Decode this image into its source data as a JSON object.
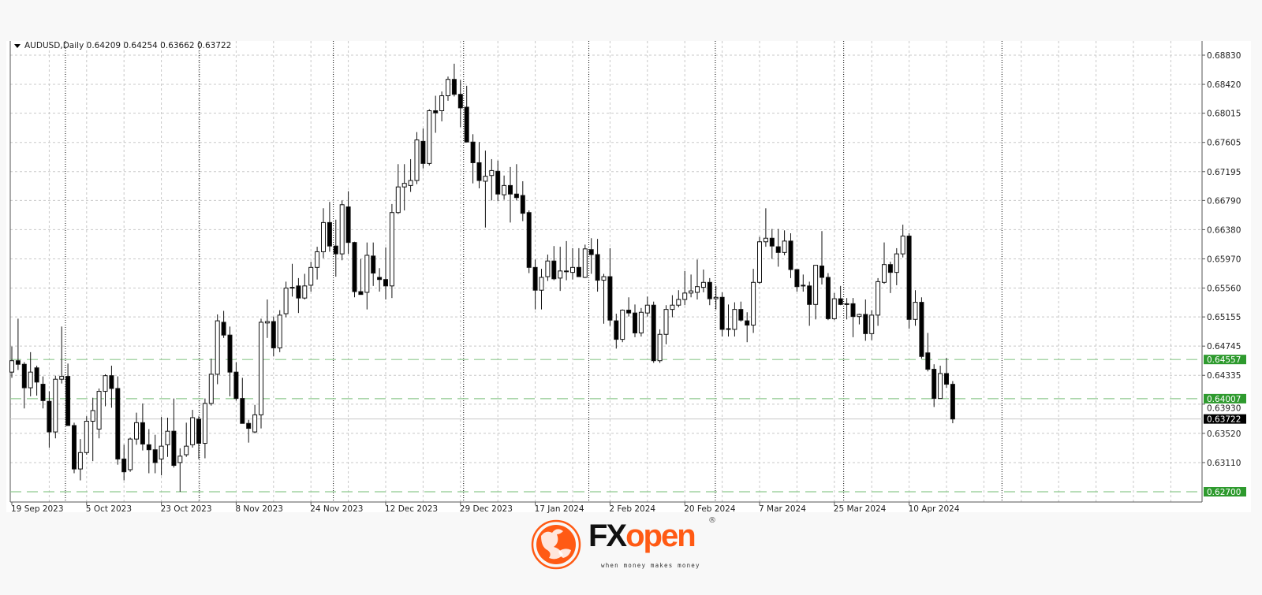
{
  "header": {
    "symbol_period": "AUDUSD,Daily",
    "open": "0.64209",
    "high": "0.64254",
    "low": "0.63662",
    "close": "0.63722",
    "menu_icon": "triangle-down-icon"
  },
  "logo": {
    "brand_fx": "FX",
    "brand_open": "open",
    "registered": "®",
    "tagline": "when money makes money",
    "icon": "bull-emblem-icon",
    "colors": {
      "orange": "#ff5a14",
      "black": "#111111"
    }
  },
  "chart_data": {
    "type": "candlestick",
    "symbol": "AUDUSD",
    "timeframe": "Daily",
    "ylim": [
      0.627,
      0.6883
    ],
    "y_ticks": [
      "0.68830",
      "0.68420",
      "0.68015",
      "0.67605",
      "0.67195",
      "0.66790",
      "0.66380",
      "0.65970",
      "0.65560",
      "0.65155",
      "0.64745",
      "0.64335",
      "0.63930",
      "0.63520",
      "0.63110"
    ],
    "x_tick_labels": [
      "19 Sep 2023",
      "5 Oct 2023",
      "23 Oct 2023",
      "8 Nov 2023",
      "24 Nov 2023",
      "12 Dec 2023",
      "29 Dec 2023",
      "17 Jan 2024",
      "2 Feb 2024",
      "20 Feb 2024",
      "7 Mar 2024",
      "25 Mar 2024",
      "10 Apr 2024"
    ],
    "grid": true,
    "colors": {
      "bull_body": "#ffffff",
      "bear_body": "#000000",
      "level_line": "#8fc98f",
      "level_label": "#2e9a2e",
      "price_line": "#c8c8c8",
      "price_label": "#000000"
    },
    "levels": [
      {
        "value": 0.64557,
        "label": "0.64557",
        "style": "dashed-green"
      },
      {
        "value": 0.64007,
        "label": "0.64007",
        "style": "dashed-green"
      },
      {
        "value": 0.627,
        "label": "0.62700",
        "style": "dashed-green"
      }
    ],
    "current_price": {
      "value": 0.63722,
      "label": "0.63722"
    },
    "ohlc_fields": [
      "open",
      "high",
      "low",
      "close"
    ],
    "ohlc": [
      [
        0.6438,
        0.6474,
        0.643,
        0.6454
      ],
      [
        0.6454,
        0.6513,
        0.6441,
        0.6449
      ],
      [
        0.6449,
        0.6452,
        0.6387,
        0.6416
      ],
      [
        0.6416,
        0.6466,
        0.6404,
        0.6438
      ],
      [
        0.6444,
        0.6447,
        0.6405,
        0.6424
      ],
      [
        0.6421,
        0.6432,
        0.6387,
        0.6398
      ],
      [
        0.6397,
        0.6411,
        0.6332,
        0.6354
      ],
      [
        0.6354,
        0.6433,
        0.6345,
        0.6428
      ],
      [
        0.6428,
        0.6502,
        0.6422,
        0.6432
      ],
      [
        0.6432,
        0.645,
        0.6363,
        0.6363
      ],
      [
        0.6363,
        0.6367,
        0.6296,
        0.6302
      ],
      [
        0.6302,
        0.6344,
        0.6286,
        0.6325
      ],
      [
        0.6325,
        0.6376,
        0.6322,
        0.6369
      ],
      [
        0.6369,
        0.6402,
        0.6313,
        0.6384
      ],
      [
        0.6358,
        0.6415,
        0.6345,
        0.6411
      ],
      [
        0.6411,
        0.6435,
        0.639,
        0.6433
      ],
      [
        0.6433,
        0.6447,
        0.6388,
        0.6415
      ],
      [
        0.6415,
        0.6432,
        0.6308,
        0.6316
      ],
      [
        0.6316,
        0.6336,
        0.6286,
        0.6298
      ],
      [
        0.6301,
        0.6346,
        0.6298,
        0.6344
      ],
      [
        0.6344,
        0.6381,
        0.6336,
        0.6367
      ],
      [
        0.6367,
        0.6394,
        0.6328,
        0.6337
      ],
      [
        0.6336,
        0.6358,
        0.6296,
        0.6329
      ],
      [
        0.6329,
        0.635,
        0.6296,
        0.6311
      ],
      [
        0.6316,
        0.6375,
        0.6293,
        0.6334
      ],
      [
        0.6336,
        0.6374,
        0.6319,
        0.6355
      ],
      [
        0.6355,
        0.6401,
        0.6304,
        0.6307
      ],
      [
        0.6311,
        0.6331,
        0.627,
        0.632
      ],
      [
        0.6322,
        0.6367,
        0.6319,
        0.6334
      ],
      [
        0.6336,
        0.6385,
        0.6332,
        0.6374
      ],
      [
        0.6372,
        0.6376,
        0.6316,
        0.6338
      ],
      [
        0.6338,
        0.6401,
        0.6317,
        0.6394
      ],
      [
        0.6394,
        0.6457,
        0.6391,
        0.6435
      ],
      [
        0.6435,
        0.6519,
        0.6421,
        0.651
      ],
      [
        0.6508,
        0.6524,
        0.6486,
        0.649
      ],
      [
        0.649,
        0.6502,
        0.6404,
        0.6438
      ],
      [
        0.6438,
        0.6452,
        0.6398,
        0.6401
      ],
      [
        0.6401,
        0.643,
        0.6366,
        0.6366
      ],
      [
        0.6366,
        0.6371,
        0.6339,
        0.6359
      ],
      [
        0.6354,
        0.6392,
        0.6352,
        0.6378
      ],
      [
        0.6378,
        0.6513,
        0.6359,
        0.6508
      ],
      [
        0.6507,
        0.654,
        0.6486,
        0.6509
      ],
      [
        0.6509,
        0.6516,
        0.646,
        0.6472
      ],
      [
        0.6472,
        0.6525,
        0.6466,
        0.6518
      ],
      [
        0.652,
        0.6565,
        0.6515,
        0.6556
      ],
      [
        0.6556,
        0.659,
        0.6544,
        0.6557
      ],
      [
        0.6559,
        0.657,
        0.6521,
        0.6542
      ],
      [
        0.6542,
        0.6576,
        0.654,
        0.6559
      ],
      [
        0.656,
        0.6593,
        0.6551,
        0.6585
      ],
      [
        0.6585,
        0.6614,
        0.6568,
        0.6607
      ],
      [
        0.6607,
        0.6668,
        0.6598,
        0.6648
      ],
      [
        0.6648,
        0.6677,
        0.6607,
        0.6615
      ],
      [
        0.6615,
        0.6652,
        0.6572,
        0.6604
      ],
      [
        0.6604,
        0.6679,
        0.6595,
        0.6673
      ],
      [
        0.667,
        0.6692,
        0.6604,
        0.662
      ],
      [
        0.662,
        0.6621,
        0.6543,
        0.6551
      ],
      [
        0.6551,
        0.6597,
        0.6547,
        0.6547
      ],
      [
        0.655,
        0.662,
        0.6526,
        0.6602
      ],
      [
        0.6601,
        0.662,
        0.6559,
        0.6577
      ],
      [
        0.6571,
        0.6584,
        0.6551,
        0.6568
      ],
      [
        0.6568,
        0.6613,
        0.654,
        0.6559
      ],
      [
        0.6559,
        0.6674,
        0.6542,
        0.6662
      ],
      [
        0.6662,
        0.673,
        0.666,
        0.6698
      ],
      [
        0.6698,
        0.673,
        0.6665,
        0.6703
      ],
      [
        0.67,
        0.6737,
        0.6691,
        0.6707
      ],
      [
        0.6707,
        0.6775,
        0.6702,
        0.6764
      ],
      [
        0.6762,
        0.678,
        0.6724,
        0.6731
      ],
      [
        0.6731,
        0.6807,
        0.6728,
        0.6805
      ],
      [
        0.6805,
        0.6826,
        0.6774,
        0.6802
      ],
      [
        0.6805,
        0.6832,
        0.679,
        0.6826
      ],
      [
        0.6826,
        0.6853,
        0.6819,
        0.6849
      ],
      [
        0.6849,
        0.6871,
        0.6825,
        0.6828
      ],
      [
        0.6828,
        0.6848,
        0.6782,
        0.6809
      ],
      [
        0.681,
        0.684,
        0.6761,
        0.6761
      ],
      [
        0.6761,
        0.6772,
        0.6703,
        0.6732
      ],
      [
        0.6732,
        0.6761,
        0.6696,
        0.6707
      ],
      [
        0.6706,
        0.6749,
        0.6641,
        0.6713
      ],
      [
        0.6714,
        0.6737,
        0.6679,
        0.6721
      ],
      [
        0.672,
        0.6735,
        0.6678,
        0.6688
      ],
      [
        0.6687,
        0.6714,
        0.668,
        0.67
      ],
      [
        0.67,
        0.6726,
        0.6648,
        0.6688
      ],
      [
        0.6688,
        0.673,
        0.6679,
        0.6683
      ],
      [
        0.6686,
        0.6706,
        0.665,
        0.6661
      ],
      [
        0.6662,
        0.6665,
        0.6577,
        0.6585
      ],
      [
        0.6585,
        0.6596,
        0.6526,
        0.6553
      ],
      [
        0.6553,
        0.6583,
        0.6526,
        0.6571
      ],
      [
        0.6572,
        0.6603,
        0.6566,
        0.6594
      ],
      [
        0.6594,
        0.6615,
        0.6567,
        0.6569
      ],
      [
        0.657,
        0.6614,
        0.6552,
        0.658
      ],
      [
        0.658,
        0.6622,
        0.6567,
        0.6579
      ],
      [
        0.6578,
        0.6612,
        0.6568,
        0.6585
      ],
      [
        0.6585,
        0.6612,
        0.6572,
        0.6572
      ],
      [
        0.6571,
        0.6617,
        0.657,
        0.6611
      ],
      [
        0.661,
        0.6626,
        0.6576,
        0.6603
      ],
      [
        0.6603,
        0.6625,
        0.6551,
        0.6567
      ],
      [
        0.6567,
        0.6576,
        0.6506,
        0.6572
      ],
      [
        0.6572,
        0.6612,
        0.6503,
        0.6511
      ],
      [
        0.651,
        0.652,
        0.6471,
        0.6484
      ],
      [
        0.6484,
        0.6526,
        0.648,
        0.6525
      ],
      [
        0.6525,
        0.6543,
        0.6516,
        0.6521
      ],
      [
        0.6521,
        0.6533,
        0.6487,
        0.6493
      ],
      [
        0.6493,
        0.6528,
        0.6488,
        0.6522
      ],
      [
        0.6521,
        0.6544,
        0.6516,
        0.6532
      ],
      [
        0.6532,
        0.6537,
        0.6451,
        0.6454
      ],
      [
        0.6454,
        0.6498,
        0.6451,
        0.6491
      ],
      [
        0.6491,
        0.6532,
        0.6477,
        0.6526
      ],
      [
        0.6526,
        0.6546,
        0.6515,
        0.6532
      ],
      [
        0.6532,
        0.6553,
        0.6529,
        0.654
      ],
      [
        0.654,
        0.658,
        0.6532,
        0.6549
      ],
      [
        0.6549,
        0.6575,
        0.6543,
        0.6552
      ],
      [
        0.655,
        0.6596,
        0.654,
        0.6558
      ],
      [
        0.6557,
        0.6582,
        0.655,
        0.6564
      ],
      [
        0.6564,
        0.657,
        0.6532,
        0.6541
      ],
      [
        0.6541,
        0.6559,
        0.6526,
        0.6543
      ],
      [
        0.6543,
        0.655,
        0.6488,
        0.6498
      ],
      [
        0.6498,
        0.6533,
        0.6488,
        0.6499
      ],
      [
        0.6498,
        0.6536,
        0.6488,
        0.6526
      ],
      [
        0.6526,
        0.6537,
        0.6509,
        0.6511
      ],
      [
        0.651,
        0.6522,
        0.648,
        0.6504
      ],
      [
        0.6504,
        0.6583,
        0.6493,
        0.6564
      ],
      [
        0.6564,
        0.6628,
        0.6562,
        0.6621
      ],
      [
        0.6621,
        0.6668,
        0.6614,
        0.6626
      ],
      [
        0.6626,
        0.6639,
        0.6597,
        0.6615
      ],
      [
        0.6614,
        0.6639,
        0.6586,
        0.6606
      ],
      [
        0.6606,
        0.6637,
        0.6602,
        0.6622
      ],
      [
        0.6622,
        0.6633,
        0.657,
        0.6582
      ],
      [
        0.6582,
        0.6582,
        0.6551,
        0.6558
      ],
      [
        0.656,
        0.6575,
        0.6551,
        0.6559
      ],
      [
        0.6559,
        0.6565,
        0.6503,
        0.6533
      ],
      [
        0.6533,
        0.6588,
        0.6512,
        0.6588
      ],
      [
        0.6587,
        0.6636,
        0.6561,
        0.6571
      ],
      [
        0.6571,
        0.6577,
        0.6511,
        0.6513
      ],
      [
        0.6513,
        0.6549,
        0.6511,
        0.6541
      ],
      [
        0.6541,
        0.6559,
        0.6532,
        0.6533
      ],
      [
        0.6534,
        0.6542,
        0.6512,
        0.6534
      ],
      [
        0.6534,
        0.6542,
        0.6487,
        0.6516
      ],
      [
        0.6516,
        0.652,
        0.6505,
        0.6519
      ],
      [
        0.6519,
        0.654,
        0.6482,
        0.6492
      ],
      [
        0.6492,
        0.6525,
        0.6483,
        0.6518
      ],
      [
        0.6518,
        0.657,
        0.6503,
        0.6565
      ],
      [
        0.6564,
        0.662,
        0.6562,
        0.6589
      ],
      [
        0.6589,
        0.6593,
        0.6549,
        0.6578
      ],
      [
        0.6578,
        0.6612,
        0.656,
        0.6604
      ],
      [
        0.6604,
        0.6645,
        0.6599,
        0.6629
      ],
      [
        0.6629,
        0.6633,
        0.6499,
        0.6512
      ],
      [
        0.6512,
        0.6553,
        0.6503,
        0.6536
      ],
      [
        0.6536,
        0.6543,
        0.6457,
        0.646
      ],
      [
        0.6465,
        0.6493,
        0.6439,
        0.6442
      ],
      [
        0.6442,
        0.6449,
        0.6389,
        0.6401
      ],
      [
        0.6401,
        0.6447,
        0.6401,
        0.6436
      ],
      [
        0.6436,
        0.6458,
        0.6416,
        0.6421
      ],
      [
        0.64209,
        0.64254,
        0.63662,
        0.63722
      ]
    ]
  }
}
